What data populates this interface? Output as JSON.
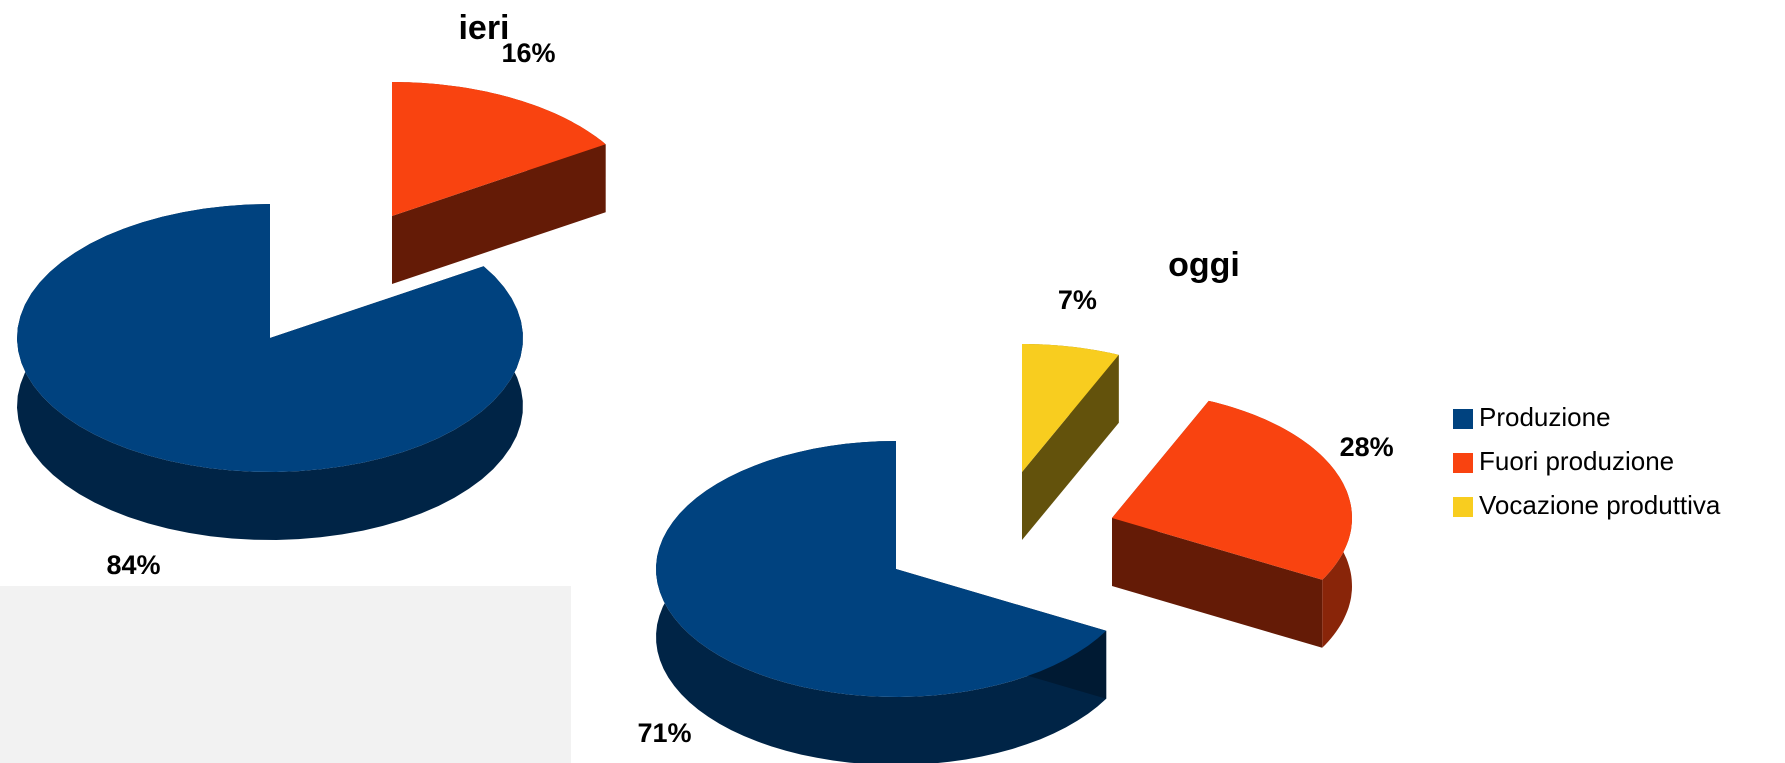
{
  "chart_data": [
    {
      "type": "pie",
      "title": "ieri",
      "categories": [
        "Produzione",
        "Fuori produzione"
      ],
      "values": [
        84,
        16
      ],
      "value_labels": [
        "84%",
        "16%"
      ],
      "colors": [
        "#00427f",
        "#f94310"
      ]
    },
    {
      "type": "pie",
      "title": "oggi",
      "categories": [
        "Produzione",
        "Fuori produzione",
        "Vocazione produttiva"
      ],
      "values": [
        71,
        28,
        7
      ],
      "value_labels": [
        "71%",
        "28%",
        "7%"
      ],
      "colors": [
        "#00427f",
        "#f94310",
        "#f8cd1f"
      ],
      "legend": "right"
    }
  ]
}
